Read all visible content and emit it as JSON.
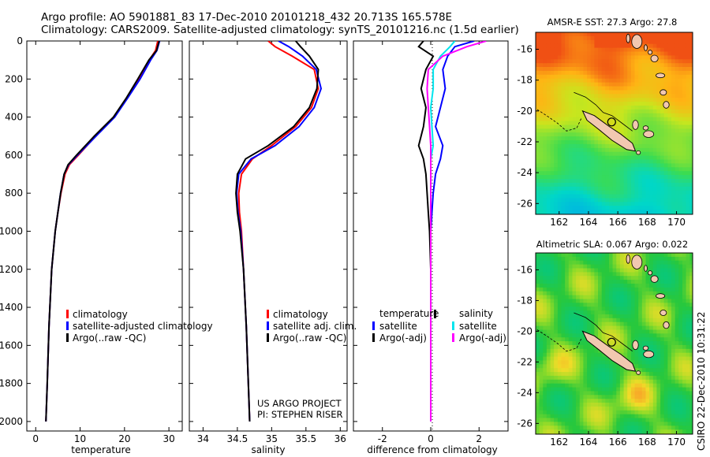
{
  "header": {
    "line1": "Argo profile: AO 5901881_83 17-Dec-2010 20101218_432 20.713S 165.578E",
    "line2": "Climatology: CARS2009. Satellite-adjusted climatology: synTS_20101216.nc (1.5d earlier)"
  },
  "credit": {
    "project": "US ARGO PROJECT",
    "pi": "PI: STEPHEN RISER",
    "stamp": "CSIRO 22-Dec-2010 10:31:22"
  },
  "colors": {
    "climatology": "#ff0000",
    "satellite": "#0000ff",
    "argo": "#000000",
    "satellite_salinity": "#00e5ee",
    "argo_salinity": "#ff00ff",
    "land": "#f2c8b0"
  },
  "chart_data": [
    {
      "type": "line",
      "xlabel": "temperature",
      "x_ticks": [
        0,
        10,
        20,
        30
      ],
      "xlim": [
        -2,
        33
      ],
      "ylim": [
        2050,
        0
      ],
      "y_ticks": [
        0,
        200,
        400,
        600,
        800,
        1000,
        1200,
        1400,
        1600,
        1800,
        2000
      ],
      "legend_position": "bottom-center",
      "series": [
        {
          "name": "climatology",
          "color": "#ff0000",
          "x": [
            27.5,
            27.0,
            25.6,
            23.3,
            20.5,
            17.6,
            13.5,
            9.6,
            7.6,
            6.6,
            5.7,
            5.0,
            4.4,
            3.6,
            3.0,
            2.6,
            2.3
          ],
          "y": [
            0,
            50,
            100,
            200,
            300,
            400,
            500,
            600,
            650,
            700,
            800,
            900,
            1000,
            1200,
            1500,
            1800,
            2000
          ]
        },
        {
          "name": "satellite-adjusted climatology",
          "color": "#0000ff",
          "x": [
            27.9,
            27.3,
            25.9,
            23.5,
            20.7,
            17.8,
            13.6,
            9.4,
            7.4,
            6.4,
            5.6,
            5.0,
            4.4,
            3.6,
            3.0,
            2.6,
            2.3
          ],
          "y": [
            0,
            50,
            100,
            200,
            300,
            400,
            500,
            600,
            650,
            700,
            800,
            900,
            1000,
            1200,
            1500,
            1800,
            2000
          ]
        },
        {
          "name": "Argo(..raw -QC)",
          "color": "#000000",
          "x": [
            27.8,
            27.2,
            25.5,
            23.0,
            20.4,
            17.5,
            13.2,
            9.2,
            7.3,
            6.4,
            5.6,
            5.0,
            4.4,
            3.6,
            3.0,
            2.6,
            2.3
          ],
          "y": [
            0,
            50,
            100,
            200,
            300,
            400,
            500,
            600,
            650,
            700,
            800,
            900,
            1000,
            1200,
            1500,
            1800,
            2000
          ]
        }
      ]
    },
    {
      "type": "line",
      "xlabel": "salinity",
      "x_ticks": [
        34,
        34.5,
        35,
        35.5,
        36
      ],
      "xlim": [
        33.8,
        36.1
      ],
      "ylim": [
        2050,
        0
      ],
      "legend_position": "bottom-right",
      "series": [
        {
          "name": "climatology",
          "color": "#ff0000",
          "x": [
            34.95,
            35.05,
            35.3,
            35.62,
            35.68,
            35.58,
            35.35,
            35.0,
            34.72,
            34.56,
            34.52,
            34.53,
            34.56,
            34.59,
            34.63,
            34.66,
            34.68
          ],
          "y": [
            0,
            30,
            80,
            150,
            250,
            350,
            450,
            550,
            620,
            700,
            800,
            900,
            1000,
            1200,
            1500,
            1800,
            2000
          ]
        },
        {
          "name": "satellite adj. clim.",
          "color": "#0000ff",
          "x": [
            35.1,
            35.25,
            35.45,
            35.65,
            35.72,
            35.62,
            35.4,
            35.05,
            34.7,
            34.52,
            34.49,
            34.51,
            34.55,
            34.59,
            34.63,
            34.66,
            34.68
          ],
          "y": [
            0,
            30,
            80,
            150,
            250,
            350,
            450,
            550,
            620,
            700,
            800,
            900,
            1000,
            1200,
            1500,
            1800,
            2000
          ]
        },
        {
          "name": "Argo(..raw -QC)",
          "color": "#000000",
          "x": [
            35.35,
            35.42,
            35.55,
            35.68,
            35.66,
            35.55,
            35.32,
            34.95,
            34.62,
            34.5,
            34.48,
            34.5,
            34.54,
            34.59,
            34.63,
            34.66,
            34.68
          ],
          "y": [
            0,
            30,
            80,
            150,
            250,
            350,
            450,
            550,
            620,
            700,
            800,
            900,
            1000,
            1200,
            1500,
            1800,
            2000
          ]
        }
      ]
    },
    {
      "type": "line",
      "xlabel": "difference from climatology",
      "x_ticks": [
        -2,
        0,
        2
      ],
      "xlim": [
        -3.2,
        3.2
      ],
      "ylim": [
        2050,
        0
      ],
      "legend_position": "bottom",
      "legend_headings": [
        "temperature",
        "salinity"
      ],
      "series": [
        {
          "name": "satellite",
          "group": "temperature",
          "color": "#0000ff",
          "x": [
            1.8,
            1.0,
            0.7,
            0.5,
            0.6,
            0.4,
            0.2,
            0.5,
            0.4,
            0.2,
            0.1,
            0.05,
            0.0,
            0.0,
            0.0,
            0.0,
            0.0
          ],
          "y": [
            0,
            30,
            80,
            150,
            250,
            350,
            450,
            550,
            620,
            700,
            800,
            900,
            1000,
            1200,
            1500,
            1800,
            2000
          ]
        },
        {
          "name": "Argo(-adj)",
          "group": "temperature",
          "color": "#000000",
          "x": [
            -0.3,
            -0.5,
            0.1,
            -0.2,
            -0.4,
            -0.2,
            -0.3,
            -0.5,
            -0.3,
            -0.2,
            -0.15,
            -0.1,
            -0.05,
            0.0,
            0.0,
            0.0,
            0.0
          ],
          "y": [
            0,
            30,
            80,
            150,
            250,
            350,
            450,
            550,
            620,
            700,
            800,
            900,
            1000,
            1200,
            1500,
            1800,
            2000
          ]
        },
        {
          "name": "satellite",
          "group": "salinity",
          "color": "#00e5ee",
          "x": [
            1.0,
            0.8,
            0.4,
            0.1,
            0.1,
            0.0,
            0.05,
            0.1,
            0.0,
            0.0,
            0.0,
            0.0,
            0.0,
            0.0,
            0.0,
            0.0,
            0.0
          ],
          "y": [
            0,
            30,
            80,
            150,
            250,
            350,
            450,
            550,
            620,
            700,
            800,
            900,
            1000,
            1200,
            1500,
            1800,
            2000
          ]
        },
        {
          "name": "Argo(-adj)",
          "group": "salinity",
          "color": "#ff00ff",
          "x": [
            2.3,
            1.5,
            0.5,
            -0.1,
            -0.15,
            -0.1,
            -0.05,
            0.0,
            0.0,
            0.0,
            0.0,
            0.0,
            0.0,
            0.0,
            0.0,
            0.0,
            0.0
          ],
          "y": [
            0,
            30,
            80,
            150,
            250,
            350,
            450,
            550,
            620,
            700,
            800,
            900,
            1000,
            1200,
            1500,
            1800,
            2000
          ]
        }
      ]
    },
    {
      "type": "heatmap",
      "title": "AMSR-E SST: 27.3 Argo: 27.8",
      "x_ticks": [
        162,
        164,
        166,
        168,
        170
      ],
      "y_ticks": [
        -16,
        -18,
        -20,
        -22,
        -24,
        -26
      ],
      "xlim": [
        160.4,
        171.1
      ],
      "ylim": [
        -26.7,
        -14.9
      ],
      "argo_position": [
        165.578,
        -20.713
      ]
    },
    {
      "type": "heatmap",
      "title": "Altimetric SLA: 0.067 Argo: 0.022",
      "x_ticks": [
        162,
        164,
        166,
        168,
        170
      ],
      "y_ticks": [
        -16,
        -18,
        -20,
        -22,
        -24,
        -26
      ],
      "xlim": [
        160.4,
        171.1
      ],
      "ylim": [
        -26.7,
        -14.9
      ],
      "argo_position": [
        165.578,
        -20.713
      ]
    }
  ]
}
